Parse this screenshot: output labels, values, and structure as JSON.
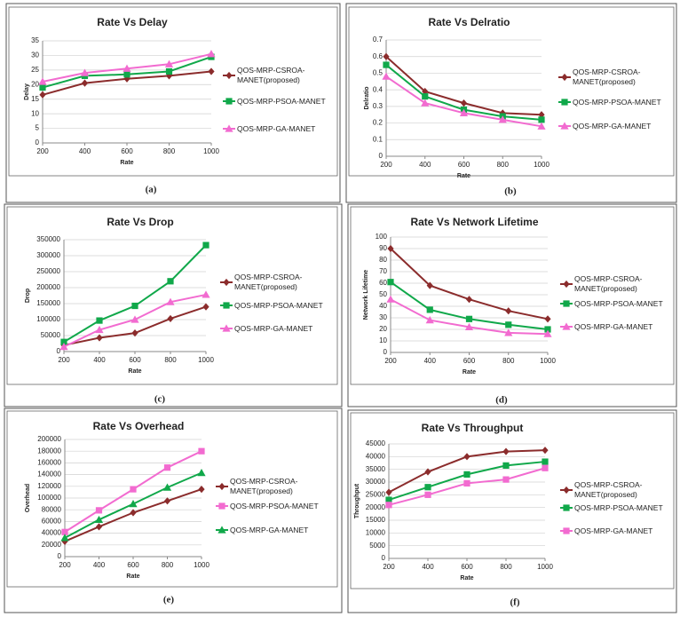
{
  "chart_data": [
    {
      "type": "line",
      "title": "Rate Vs Delay",
      "caption": "(a)",
      "xlabel": "Rate",
      "ylabel": "Delay",
      "x": [
        200,
        400,
        600,
        800,
        1000
      ],
      "xlim": [
        200,
        1000
      ],
      "xticks": [
        200,
        400,
        600,
        800,
        1000
      ],
      "ylim": [
        0,
        35
      ],
      "yticks": [
        0,
        5,
        10,
        15,
        20,
        25,
        30,
        35
      ],
      "grid": true,
      "series": [
        {
          "name": "QOS-MRP-CSROA-MANET(proposed)",
          "color": "#8b2c2c",
          "marker": "diamond",
          "values": [
            16.5,
            20.5,
            22,
            23,
            24.5
          ]
        },
        {
          "name": "QOS-MRP-PSOA-MANET",
          "color": "#10a84a",
          "marker": "square",
          "values": [
            19,
            23,
            23.5,
            24.5,
            29.5
          ]
        },
        {
          "name": "QOS-MRP-GA-MANET",
          "color": "#f26bd0",
          "marker": "triangle",
          "values": [
            21,
            24,
            25.5,
            27,
            30.5
          ]
        }
      ]
    },
    {
      "type": "line",
      "title": "Rate Vs Delratio",
      "caption": "(b)",
      "xlabel": "Rate",
      "ylabel": "Delratio",
      "x": [
        200,
        400,
        600,
        800,
        1000
      ],
      "xlim": [
        200,
        1000
      ],
      "xticks": [
        200,
        400,
        600,
        800,
        1000
      ],
      "ylim": [
        0,
        0.7
      ],
      "yticks": [
        0,
        0.1,
        0.2,
        0.3,
        0.4,
        0.5,
        0.6,
        0.7
      ],
      "grid": true,
      "series": [
        {
          "name": "QOS-MRP-CSROA-MANET(proposed)",
          "color": "#8b2c2c",
          "marker": "diamond",
          "values": [
            0.6,
            0.39,
            0.32,
            0.26,
            0.25
          ]
        },
        {
          "name": "QOS-MRP-PSOA-MANET",
          "color": "#10a84a",
          "marker": "square",
          "values": [
            0.55,
            0.36,
            0.28,
            0.24,
            0.22
          ]
        },
        {
          "name": "QOS-MRP-GA-MANET",
          "color": "#f26bd0",
          "marker": "triangle",
          "values": [
            0.48,
            0.32,
            0.26,
            0.22,
            0.18
          ]
        }
      ]
    },
    {
      "type": "line",
      "title": "Rate Vs Drop",
      "caption": "(c)",
      "xlabel": "Rate",
      "ylabel": "Drop",
      "x": [
        200,
        400,
        600,
        800,
        1000
      ],
      "xlim": [
        200,
        1000
      ],
      "xticks": [
        200,
        400,
        600,
        800,
        1000
      ],
      "ylim": [
        0,
        350000
      ],
      "yticks": [
        0,
        50000,
        100000,
        150000,
        200000,
        250000,
        300000,
        350000
      ],
      "grid": true,
      "series": [
        {
          "name": "QOS-MRP-CSROA-MANET(proposed)",
          "color": "#8b2c2c",
          "marker": "diamond",
          "values": [
            20000,
            43000,
            58000,
            103000,
            140000
          ]
        },
        {
          "name": "QOS-MRP-PSOA-MANET",
          "color": "#10a84a",
          "marker": "square",
          "values": [
            30000,
            97000,
            143000,
            220000,
            333000
          ]
        },
        {
          "name": "QOS-MRP-GA-MANET",
          "color": "#f26bd0",
          "marker": "triangle",
          "values": [
            15000,
            68000,
            100000,
            155000,
            178000
          ]
        }
      ]
    },
    {
      "type": "line",
      "title": "Rate Vs Network Lifetime",
      "caption": "(d)",
      "xlabel": "Rate",
      "ylabel": "Network Lifetime",
      "x": [
        200,
        400,
        600,
        800,
        1000
      ],
      "xlim": [
        200,
        1000
      ],
      "xticks": [
        200,
        400,
        600,
        800,
        1000
      ],
      "ylim": [
        0,
        100
      ],
      "yticks": [
        0,
        10,
        20,
        30,
        40,
        50,
        60,
        70,
        80,
        90,
        100
      ],
      "grid": true,
      "series": [
        {
          "name": "QOS-MRP-CSROA-MANET(proposed)",
          "color": "#8b2c2c",
          "marker": "diamond",
          "values": [
            90,
            58,
            46,
            36,
            29
          ]
        },
        {
          "name": "QOS-MRP-PSOA-MANET",
          "color": "#10a84a",
          "marker": "square",
          "values": [
            61,
            37,
            29,
            24,
            20
          ]
        },
        {
          "name": "QOS-MRP-GA-MANET",
          "color": "#f26bd0",
          "marker": "triangle",
          "values": [
            46,
            28,
            22,
            17,
            16
          ]
        }
      ]
    },
    {
      "type": "line",
      "title": "Rate Vs Overhead",
      "caption": "(e)",
      "xlabel": "Rate",
      "ylabel": "Overhead",
      "x": [
        200,
        400,
        600,
        800,
        1000
      ],
      "xlim": [
        200,
        1000
      ],
      "xticks": [
        200,
        400,
        600,
        800,
        1000
      ],
      "ylim": [
        0,
        200000
      ],
      "yticks": [
        0,
        20000,
        40000,
        60000,
        80000,
        100000,
        120000,
        140000,
        160000,
        180000,
        200000
      ],
      "grid": true,
      "series": [
        {
          "name": "QOS-MRP-CSROA-MANET(proposed)",
          "color": "#8b2c2c",
          "marker": "diamond",
          "values": [
            26000,
            51000,
            75000,
            95000,
            115000
          ]
        },
        {
          "name": "QOS-MRP-PSOA-MANET",
          "color": "#f26bd0",
          "marker": "square",
          "values": [
            42000,
            79000,
            115000,
            152000,
            180000
          ]
        },
        {
          "name": "QOS-MRP-GA-MANET",
          "color": "#10a84a",
          "marker": "triangle",
          "values": [
            32000,
            63000,
            90000,
            118000,
            143000
          ]
        }
      ]
    },
    {
      "type": "line",
      "title": "Rate Vs Throughput",
      "caption": "(f)",
      "xlabel": "Rate",
      "ylabel": "Throughput",
      "x": [
        200,
        400,
        600,
        800,
        1000
      ],
      "xlim": [
        200,
        1000
      ],
      "xticks": [
        200,
        400,
        600,
        800,
        1000
      ],
      "ylim": [
        0,
        45000
      ],
      "yticks": [
        0,
        5000,
        10000,
        15000,
        20000,
        25000,
        30000,
        35000,
        40000,
        45000
      ],
      "grid": true,
      "series": [
        {
          "name": "QOS-MRP-CSROA-MANET(proposed)",
          "color": "#8b2c2c",
          "marker": "diamond",
          "values": [
            26000,
            34000,
            40000,
            42000,
            42500
          ]
        },
        {
          "name": "QOS-MRP-PSOA-MANET",
          "color": "#10a84a",
          "marker": "square",
          "values": [
            23000,
            28000,
            33000,
            36500,
            38000
          ]
        },
        {
          "name": "QOS-MRP-GA-MANET",
          "color": "#f26bd0",
          "marker": "square",
          "values": [
            21000,
            25000,
            29500,
            31000,
            35500
          ]
        }
      ]
    }
  ]
}
